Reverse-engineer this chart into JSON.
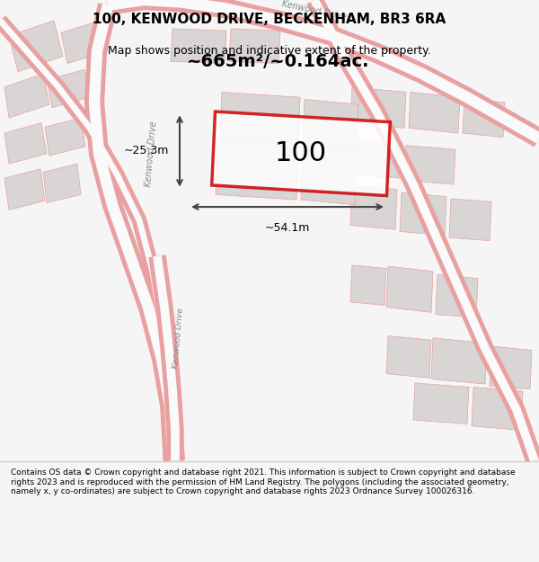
{
  "title_line1": "100, KENWOOD DRIVE, BECKENHAM, BR3 6RA",
  "title_line2": "Map shows position and indicative extent of the property.",
  "footer_text": "Contains OS data © Crown copyright and database right 2021. This information is subject to Crown copyright and database rights 2023 and is reproduced with the permission of HM Land Registry. The polygons (including the associated geometry, namely x, y co-ordinates) are subject to Crown copyright and database rights 2023 Ordnance Survey 100026316.",
  "bg_color": "#f5f5f5",
  "map_bg": "#f0eeee",
  "road_color": "#e8a0a0",
  "road_fill": "#f5f5f5",
  "building_color": "#d4d0d0",
  "building_fill": "#d9d5d5",
  "highlight_color": "#cc0000",
  "highlight_fill": "#ffffff",
  "dimension_color": "#444444",
  "area_text": "~665m²/~0.164ac.",
  "label_100": "100",
  "dim_width": "~54.1m",
  "dim_height": "~25.3m",
  "footer_bg": "#ffffff"
}
